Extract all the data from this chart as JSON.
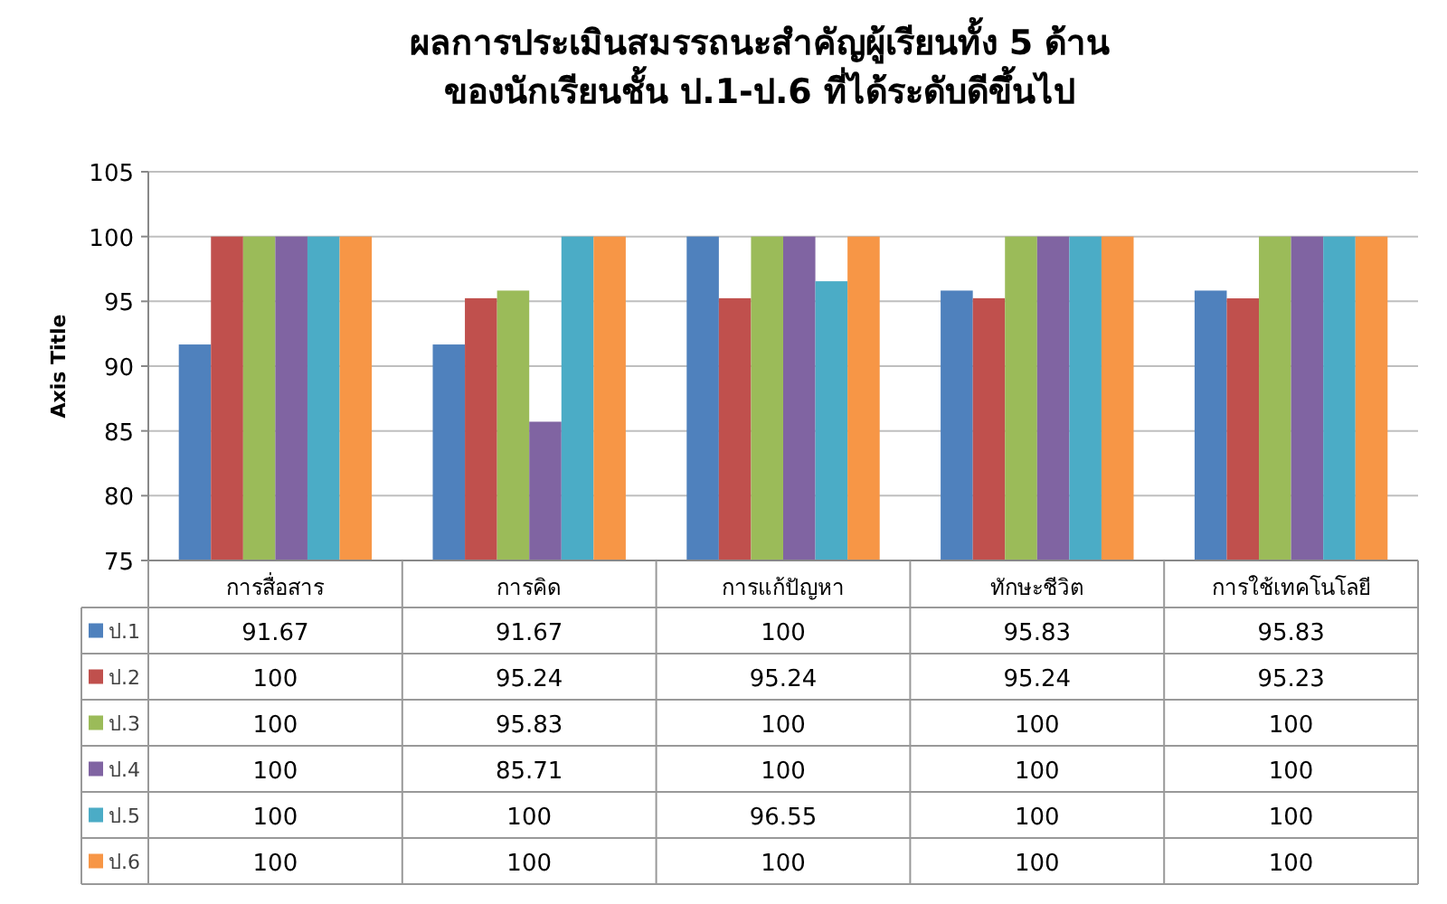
{
  "chart_data": {
    "type": "bar",
    "title": "ผลการประเมินสมรรถนะสำคัญผู้เรียนทั้ง 5 ด้าน\nของนักเรียนชั้น ป.1-ป.6 ที่ได้ระดับดีขึ้นไป",
    "ylabel": "Axis Title",
    "categories": [
      "การสื่อสาร",
      "การคิด",
      "การแก้ปัญหา",
      "ทักษะชีวิต",
      "การใช้เทคโนโลยี"
    ],
    "series": [
      {
        "name": "ป.1",
        "color": "#4f81bd",
        "values": [
          91.67,
          91.67,
          100,
          95.83,
          95.83
        ]
      },
      {
        "name": "ป.2",
        "color": "#c0504d",
        "values": [
          100,
          95.24,
          95.24,
          95.24,
          95.23
        ]
      },
      {
        "name": "ป.3",
        "color": "#9bbb59",
        "values": [
          100,
          95.83,
          100,
          100,
          100
        ]
      },
      {
        "name": "ป.4",
        "color": "#8064a2",
        "values": [
          100,
          85.71,
          100,
          100,
          100
        ]
      },
      {
        "name": "ป.5",
        "color": "#4bacc6",
        "values": [
          100,
          100,
          96.55,
          100,
          100
        ]
      },
      {
        "name": "ป.6",
        "color": "#f79646",
        "values": [
          100,
          100,
          100,
          100,
          100
        ]
      }
    ],
    "ylim": [
      75,
      105
    ],
    "yticks": [
      75,
      80,
      85,
      90,
      95,
      100,
      105
    ],
    "grid": "y",
    "data_labels": true,
    "legend": "bottom"
  }
}
